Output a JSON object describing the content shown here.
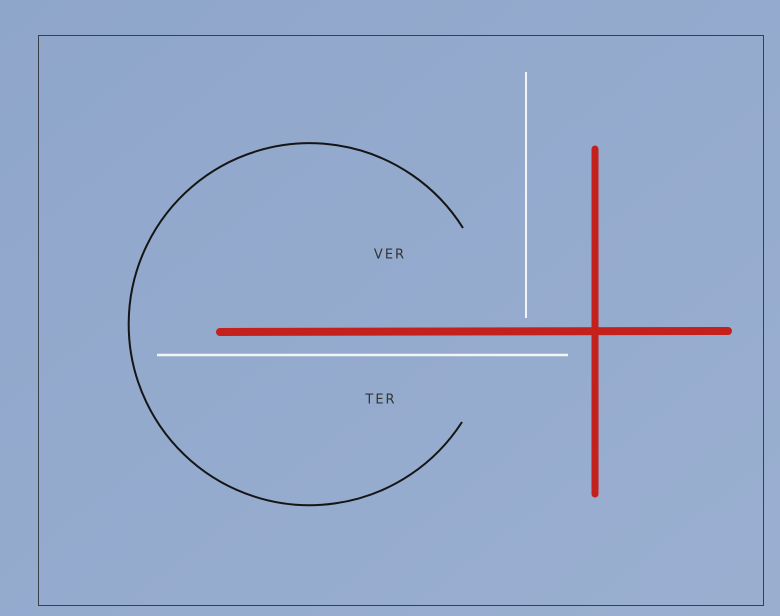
{
  "labels": {
    "upper": "VER",
    "lower": "TER"
  }
}
